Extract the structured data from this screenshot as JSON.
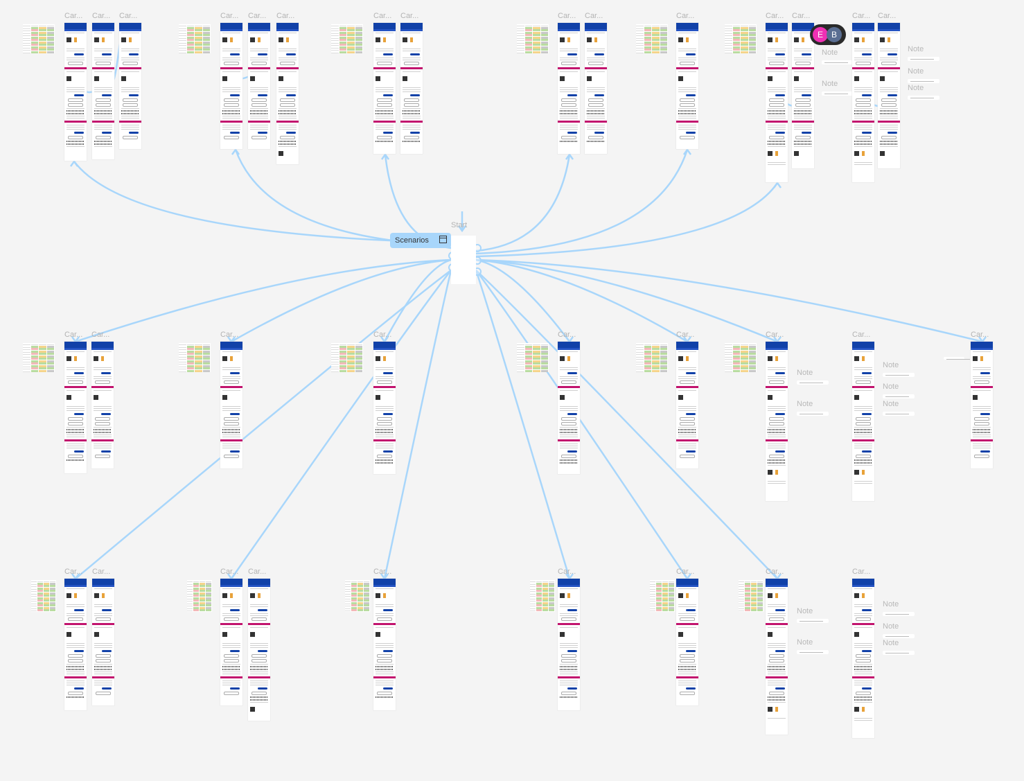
{
  "frame_title": "Car...",
  "note_title": "Note",
  "start_label": "Start",
  "scenarios_label": "Scenarios",
  "collaborators": [
    {
      "initial": "E",
      "color": "#f030b4"
    },
    {
      "initial": "B",
      "color": "#5a6e92"
    }
  ],
  "colors": {
    "connector": "#a8d6fb",
    "header": "#1141a8",
    "accent_pink": "#c2146e",
    "canvas": "#f4f4f4"
  },
  "rows": [
    {
      "groups": [
        {
          "table": true,
          "frames": [
            "Car...",
            "Car...",
            "Car..."
          ],
          "notes": []
        },
        {
          "table": true,
          "frames": [
            "Car...",
            "Car...",
            "Car..."
          ],
          "notes": []
        },
        {
          "table": true,
          "frames": [
            "Car...",
            "Car..."
          ],
          "notes": []
        },
        {
          "table": true,
          "frames": [
            "Car...",
            "Car..."
          ],
          "notes": []
        },
        {
          "table": true,
          "frames": [
            "Car..."
          ],
          "notes": []
        },
        {
          "table": true,
          "frames": [
            "Car...",
            "Car..."
          ],
          "notes": [
            "Note",
            "Note"
          ]
        },
        {
          "table": false,
          "frames": [
            "Car...",
            "Car..."
          ],
          "notes": [
            "Note",
            "Note",
            "Note"
          ]
        }
      ]
    },
    {
      "groups": [
        {
          "table": true,
          "frames": [
            "Car...",
            "Car..."
          ],
          "notes": []
        },
        {
          "table": true,
          "frames": [
            "Car..."
          ],
          "notes": []
        },
        {
          "table": true,
          "frames": [
            "Car..."
          ],
          "notes": []
        },
        {
          "table": true,
          "frames": [
            "Car..."
          ],
          "notes": []
        },
        {
          "table": true,
          "frames": [
            "Car..."
          ],
          "notes": []
        },
        {
          "table": true,
          "frames": [
            "Car..."
          ],
          "notes": [
            "Note",
            "Note"
          ]
        },
        {
          "table": false,
          "frames": [
            "Car..."
          ],
          "notes": [
            "Note",
            "Note",
            "Note"
          ]
        },
        {
          "table": false,
          "frames": [
            "Car..."
          ],
          "notes": []
        }
      ]
    },
    {
      "groups": [
        {
          "table": true,
          "frames": [
            "Car...",
            "Car..."
          ],
          "notes": []
        },
        {
          "table": true,
          "frames": [
            "Car...",
            "Car..."
          ],
          "notes": []
        },
        {
          "table": true,
          "frames": [
            "Car..."
          ],
          "notes": []
        },
        {
          "table": true,
          "frames": [
            "Car..."
          ],
          "notes": []
        },
        {
          "table": true,
          "frames": [
            "Car..."
          ],
          "notes": []
        },
        {
          "table": true,
          "frames": [
            "Car..."
          ],
          "notes": [
            "Note",
            "Note"
          ]
        },
        {
          "table": false,
          "frames": [
            "Car..."
          ],
          "notes": [
            "Note",
            "Note",
            "Note"
          ]
        }
      ]
    }
  ]
}
